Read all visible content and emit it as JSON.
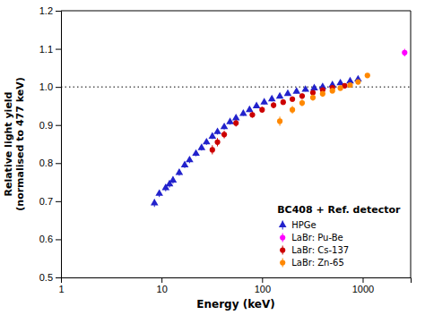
{
  "chart_data": {
    "type": "scatter",
    "title": "BC408 + Ref. detector",
    "x_label": "Energy (keV)",
    "y_label": "Relative light yield\n(normalised to 477 keV)",
    "log": "x",
    "xlim": [
      1,
      3000
    ],
    "xticks": [
      1,
      10,
      100,
      1000
    ],
    "ylim": [
      0.5,
      1.2
    ],
    "yticks": [
      0.5,
      0.6,
      0.7,
      0.8,
      0.9,
      {
        "value": 1.0,
        "label": "1.0"
      },
      1.1,
      1.2
    ],
    "grid": false,
    "legend": "lower right",
    "reference_lines": [
      {
        "y": 1.0,
        "line_style": "dotted"
      }
    ],
    "series": [
      {
        "name": "HPGe",
        "color": "#2222cc",
        "marker": "triangle",
        "x": [
          8.5,
          9.5,
          11,
          12,
          13,
          15,
          17,
          19,
          22,
          25,
          28,
          32,
          36,
          42,
          48,
          55,
          65,
          75,
          88,
          105,
          125,
          150,
          180,
          220,
          270,
          330,
          400,
          500,
          600,
          750,
          900
        ],
        "values": [
          0.695,
          0.72,
          0.735,
          0.745,
          0.755,
          0.775,
          0.795,
          0.808,
          0.825,
          0.84,
          0.855,
          0.87,
          0.882,
          0.895,
          0.908,
          0.918,
          0.93,
          0.94,
          0.95,
          0.96,
          0.968,
          0.975,
          0.982,
          0.988,
          0.993,
          0.997,
          1.0,
          1.005,
          1.01,
          1.015,
          1.02
        ],
        "errors": [
          0.01,
          0.009,
          0.009,
          0.009,
          0.009,
          0.008,
          0.008,
          0.008,
          0.007,
          0.007,
          0.007,
          0.007,
          0.007,
          0.007,
          0.007,
          0.006,
          0.006,
          0.006,
          0.006,
          0.006,
          0.006,
          0.005,
          0.005,
          0.005,
          0.005,
          0.005,
          0.005,
          0.005,
          0.005,
          0.005,
          0.005
        ]
      },
      {
        "name": "LaBr: Pu-Be",
        "color": "#ff00ff",
        "marker": "circle",
        "x": [
          2614
        ],
        "values": [
          1.09
        ],
        "errors": [
          0.01
        ]
      },
      {
        "name": "LaBr: Cs-137",
        "color": "#cc0000",
        "marker": "circle",
        "x": [
          32,
          36,
          42,
          55,
          80,
          100,
          130,
          162,
          200,
          250,
          320,
          400,
          500,
          662
        ],
        "values": [
          0.835,
          0.855,
          0.875,
          0.905,
          0.927,
          0.94,
          0.952,
          0.96,
          0.968,
          0.976,
          0.985,
          0.992,
          0.998,
          1.003
        ],
        "errors": [
          0.012,
          0.011,
          0.01,
          0.009,
          0.008,
          0.008,
          0.008,
          0.007,
          0.007,
          0.007,
          0.006,
          0.006,
          0.006,
          0.006
        ]
      },
      {
        "name": "LaBr: Zn-65",
        "color": "#ff8800",
        "marker": "circle",
        "x": [
          150,
          200,
          250,
          320,
          400,
          500,
          600,
          750,
          900,
          1115
        ],
        "values": [
          0.91,
          0.94,
          0.958,
          0.972,
          0.982,
          0.99,
          0.997,
          1.005,
          1.013,
          1.03
        ],
        "errors": [
          0.012,
          0.01,
          0.009,
          0.008,
          0.008,
          0.007,
          0.007,
          0.007,
          0.006,
          0.006
        ]
      }
    ]
  }
}
